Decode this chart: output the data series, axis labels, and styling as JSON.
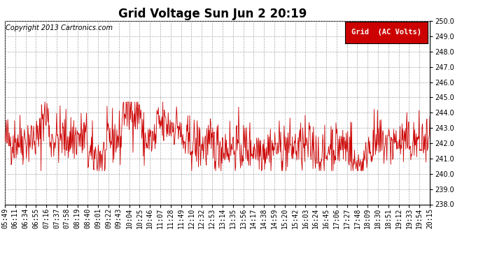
{
  "title": "Grid Voltage Sun Jun 2 20:19",
  "copyright": "Copyright 2013 Cartronics.com",
  "legend_label": "Grid  (AC Volts)",
  "legend_bg": "#cc0000",
  "legend_text_color": "#ffffff",
  "line_color": "#cc0000",
  "bg_color": "#ffffff",
  "plot_bg_color": "#ffffff",
  "grid_color": "#aaaaaa",
  "ylim": [
    238.0,
    250.0
  ],
  "yticks": [
    238.0,
    239.0,
    240.0,
    241.0,
    242.0,
    243.0,
    244.0,
    245.0,
    246.0,
    247.0,
    248.0,
    249.0,
    250.0
  ],
  "xtick_labels": [
    "05:49",
    "06:11",
    "06:34",
    "06:55",
    "07:16",
    "07:37",
    "07:58",
    "08:19",
    "08:40",
    "09:01",
    "09:22",
    "09:43",
    "10:04",
    "10:25",
    "10:46",
    "11:07",
    "11:28",
    "11:49",
    "12:10",
    "12:32",
    "12:53",
    "13:14",
    "13:35",
    "13:56",
    "14:17",
    "14:38",
    "14:59",
    "15:20",
    "15:42",
    "16:03",
    "16:24",
    "16:45",
    "17:06",
    "17:27",
    "17:48",
    "18:09",
    "18:30",
    "18:51",
    "19:12",
    "19:33",
    "19:54",
    "20:15"
  ],
  "seed": 42,
  "n_points": 870,
  "mean": 242.2,
  "std": 0.85,
  "title_fontsize": 12,
  "copyright_fontsize": 7,
  "tick_fontsize": 7,
  "legend_fontsize": 7.5
}
